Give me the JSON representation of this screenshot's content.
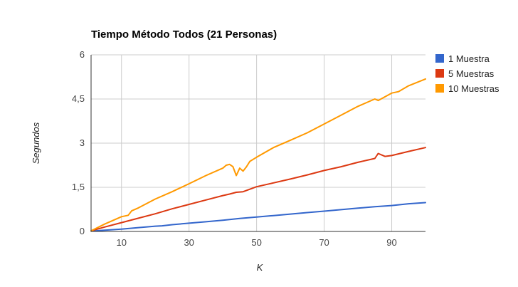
{
  "chart_data": {
    "type": "line",
    "title": "Tiempo Método Todos (21 Personas)",
    "xlabel": "K",
    "ylabel": "Segundos",
    "xlim": [
      1,
      100
    ],
    "ylim": [
      0,
      6
    ],
    "x_ticks": [
      {
        "value": 10,
        "label": "10"
      },
      {
        "value": 30,
        "label": "30"
      },
      {
        "value": 50,
        "label": "50"
      },
      {
        "value": 70,
        "label": "70"
      },
      {
        "value": 90,
        "label": "90"
      }
    ],
    "y_ticks": [
      {
        "value": 0,
        "label": "0"
      },
      {
        "value": 1.5,
        "label": "1,5"
      },
      {
        "value": 3,
        "label": "3"
      },
      {
        "value": 4.5,
        "label": "4,5"
      },
      {
        "value": 6,
        "label": "6"
      }
    ],
    "grid": true,
    "legend_position": "right",
    "series": [
      {
        "name": "1 Muestra",
        "color": "#3366cc",
        "x": [
          1,
          5,
          10,
          15,
          20,
          22,
          25,
          30,
          35,
          40,
          45,
          50,
          55,
          60,
          65,
          70,
          75,
          80,
          85,
          90,
          95,
          100
        ],
        "values": [
          0.01,
          0.04,
          0.08,
          0.13,
          0.18,
          0.19,
          0.23,
          0.28,
          0.33,
          0.38,
          0.44,
          0.49,
          0.54,
          0.59,
          0.64,
          0.69,
          0.74,
          0.79,
          0.84,
          0.88,
          0.94,
          0.98
        ]
      },
      {
        "name": "5 Muestras",
        "color": "#dc3912",
        "x": [
          1,
          5,
          10,
          15,
          20,
          25,
          30,
          35,
          40,
          42,
          44,
          46,
          50,
          55,
          60,
          65,
          70,
          75,
          80,
          85,
          86,
          88,
          90,
          95,
          100
        ],
        "values": [
          0.02,
          0.15,
          0.3,
          0.45,
          0.6,
          0.77,
          0.92,
          1.07,
          1.22,
          1.27,
          1.33,
          1.35,
          1.52,
          1.65,
          1.78,
          1.92,
          2.07,
          2.2,
          2.35,
          2.48,
          2.65,
          2.55,
          2.58,
          2.72,
          2.85
        ]
      },
      {
        "name": "10 Muestras",
        "color": "#ff9900",
        "x": [
          1,
          5,
          10,
          12,
          13,
          15,
          20,
          25,
          30,
          35,
          40,
          41,
          42,
          43,
          44,
          45,
          46,
          47,
          48,
          50,
          55,
          60,
          65,
          70,
          75,
          80,
          85,
          86,
          90,
          92,
          95,
          100
        ],
        "values": [
          0.02,
          0.25,
          0.5,
          0.55,
          0.7,
          0.8,
          1.1,
          1.35,
          1.62,
          1.9,
          2.15,
          2.25,
          2.28,
          2.2,
          1.9,
          2.15,
          2.05,
          2.2,
          2.38,
          2.52,
          2.85,
          3.1,
          3.35,
          3.65,
          3.95,
          4.25,
          4.5,
          4.45,
          4.7,
          4.75,
          4.95,
          5.18
        ]
      }
    ]
  }
}
